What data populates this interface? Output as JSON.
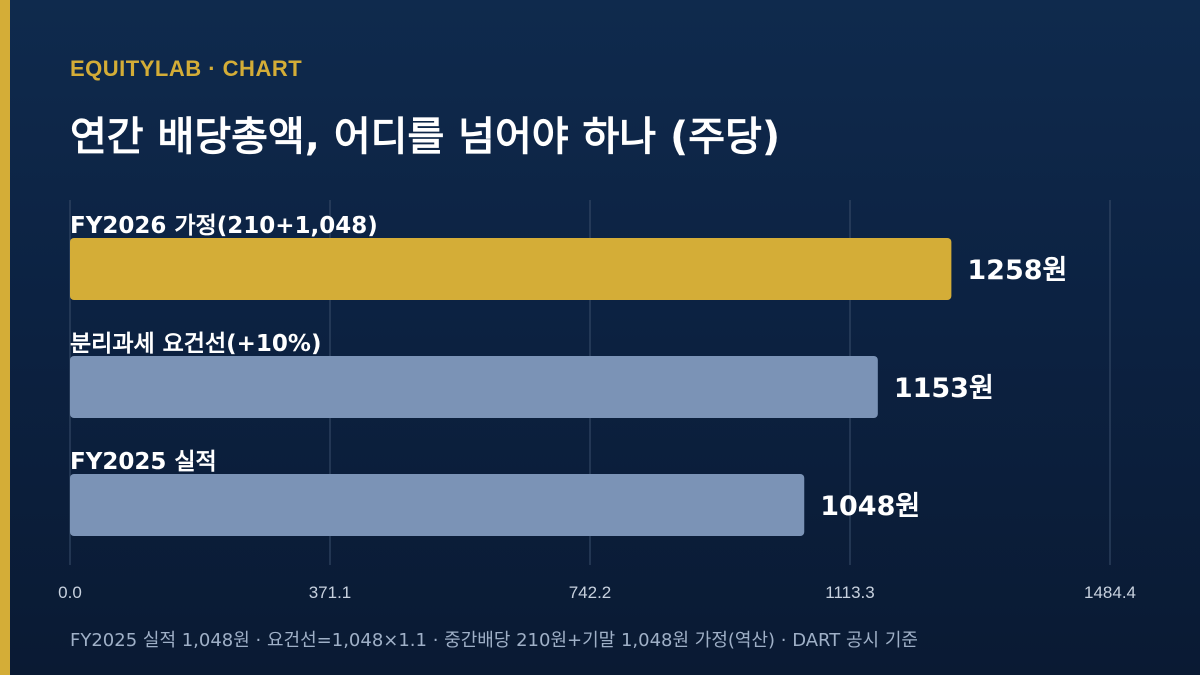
{
  "header": {
    "brand": "EQUITYLAB · CHART",
    "title": "연간 배당총액, 어디를 넘어야 하나 (주당)"
  },
  "footnote": "FY2025 실적 1,048원 · 요건선=1,048×1.1 · 중간배당 210원+기말 1,048원 가정(역산) · DART 공시 기준",
  "colors": {
    "accent": "#d4ad37",
    "bar_highlight": "#d4ad37",
    "bar_default": "#7b93b6",
    "grid": "#3a4e6b",
    "tick_label": "#c7d1de"
  },
  "chart_data": {
    "type": "bar",
    "orientation": "horizontal",
    "categories": [
      "FY2026 가정(210+1,048)",
      "분리과세 요건선(+10%)",
      "FY2025 실적"
    ],
    "values": [
      1258,
      1153,
      1048
    ],
    "value_labels": [
      "1258원",
      "1153원",
      "1048원"
    ],
    "highlight_index": 0,
    "xlim": [
      0,
      1484.4
    ],
    "xticks": [
      0,
      371.1,
      742.2,
      1113.3,
      1484.4
    ],
    "xtick_labels": [
      "0.0",
      "371.1",
      "742.2",
      "1113.3",
      "1484.4"
    ],
    "grid": true,
    "legend": "none"
  }
}
